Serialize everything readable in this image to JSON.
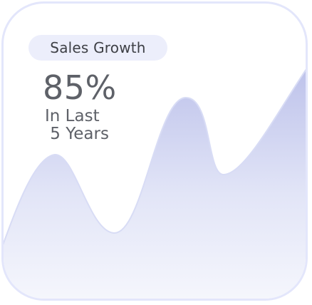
{
  "widget": {
    "badge_label": "Sales Growth",
    "value": "85%",
    "subtitle_line1": "In Last",
    "subtitle_line2": " 5 Years"
  },
  "colors": {
    "card_border": "#e3e6fb",
    "badge_background": "#eceefb",
    "area_top": "#b9bee9",
    "area_bottom": "#f7f8fd",
    "line": "#d8dcf5",
    "text_dark": "#3e4046",
    "text_muted": "#5e6168"
  }
}
